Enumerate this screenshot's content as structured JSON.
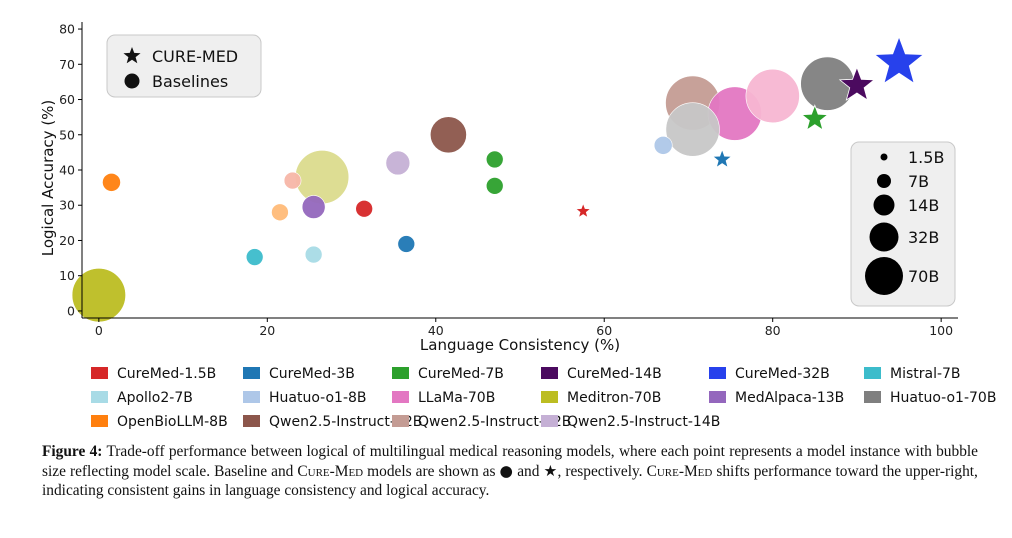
{
  "chart_data": {
    "type": "scatter",
    "xlabel": "Language Consistency (%)",
    "ylabel": "Logical Accuracy (%)",
    "xlim": [
      -2,
      102
    ],
    "ylim": [
      -2,
      82
    ],
    "xticks": [
      0,
      20,
      40,
      60,
      80,
      100
    ],
    "yticks": [
      0,
      10,
      20,
      30,
      40,
      50,
      60,
      70,
      80
    ],
    "grid": false,
    "legend_placement": "bottom",
    "marker_legend": [
      {
        "label": "CURE-MED",
        "marker": "star"
      },
      {
        "label": "Baselines",
        "marker": "circle"
      }
    ],
    "size_legend": [
      {
        "label": "1.5B",
        "size_b": 1.5
      },
      {
        "label": "7B",
        "size_b": 7
      },
      {
        "label": "14B",
        "size_b": 14
      },
      {
        "label": "32B",
        "size_b": 32
      },
      {
        "label": "70B",
        "size_b": 70
      }
    ],
    "series": [
      {
        "name": "CureMed-1.5B",
        "color": "#d62728",
        "marker": "circle",
        "size_b": 7,
        "points": [
          [
            31.5,
            29
          ]
        ]
      },
      {
        "name": "CureMed-1.5B",
        "color": "#d62728",
        "marker": "star",
        "size_b": 1.5,
        "points": [
          [
            57.5,
            28.3
          ]
        ]
      },
      {
        "name": "CureMed-3B",
        "color": "#1f77b4",
        "marker": "circle",
        "size_b": 7,
        "points": [
          [
            36.5,
            19
          ]
        ]
      },
      {
        "name": "CureMed-3B",
        "color": "#1f77b4",
        "marker": "star",
        "size_b": 3,
        "points": [
          [
            74,
            43
          ]
        ]
      },
      {
        "name": "CureMed-7B",
        "color": "#2ca02c",
        "marker": "circle",
        "size_b": 7,
        "points": [
          [
            47,
            35.5
          ],
          [
            47,
            43
          ]
        ]
      },
      {
        "name": "CureMed-7B",
        "color": "#2ca02c",
        "marker": "star",
        "size_b": 7,
        "points": [
          [
            85,
            54.5
          ]
        ]
      },
      {
        "name": "CureMed-14B",
        "color": "#4b0a5f",
        "marker": "star",
        "size_b": 14,
        "points": [
          [
            90,
            64
          ]
        ]
      },
      {
        "name": "CureMed-32B",
        "color": "#2741ec",
        "marker": "star",
        "size_b": 32,
        "points": [
          [
            95,
            70.5
          ]
        ]
      },
      {
        "name": "Mistral-7B",
        "color": "#3cbccb",
        "marker": "circle",
        "size_b": 7,
        "points": [
          [
            18.5,
            15.3
          ]
        ]
      },
      {
        "name": "Apollo2-7B",
        "color": "#a8dbe6",
        "marker": "circle",
        "size_b": 7,
        "points": [
          [
            25.5,
            16
          ]
        ]
      },
      {
        "name": "Huatuo-o1-8B",
        "color": "#aec7e8",
        "marker": "circle",
        "size_b": 8,
        "points": [
          [
            67,
            47
          ]
        ]
      },
      {
        "name": "LLaMa-70B",
        "color": "#e377c2",
        "marker": "circle",
        "size_b": 70,
        "points": [
          [
            75.5,
            56
          ]
        ]
      },
      {
        "name": "Meditron-70B",
        "color": "#bcbd22",
        "marker": "circle",
        "size_b": 70,
        "points": [
          [
            0,
            4.5
          ]
        ]
      },
      {
        "name": "MedAlpaca-13B",
        "color": "#9467bd",
        "marker": "circle",
        "size_b": 13,
        "points": [
          [
            25.5,
            29.5
          ]
        ]
      },
      {
        "name": "Huatuo-o1-70B",
        "color": "#7f7f7f",
        "marker": "circle",
        "size_b": 70,
        "points": [
          [
            86.5,
            64.5
          ]
        ]
      },
      {
        "name": "OpenBioLLM-8B",
        "color": "#ff7f0e",
        "marker": "circle",
        "size_b": 8,
        "points": [
          [
            1.5,
            36.5
          ]
        ]
      },
      {
        "name": "Qwen2.5-Instruct-32B",
        "color": "#8c564b",
        "marker": "circle",
        "size_b": 32,
        "points": [
          [
            41.5,
            50
          ]
        ]
      },
      {
        "name": "Qwen2.5-Instruct-72B",
        "color": "#c49c94",
        "marker": "circle",
        "size_b": 72,
        "points": [
          [
            70.5,
            59
          ]
        ]
      },
      {
        "name": "Qwen2.5-Instruct-14B",
        "color": "#c5b0d5",
        "marker": "circle",
        "size_b": 14,
        "points": [
          [
            35.5,
            42
          ]
        ]
      },
      {
        "name": "",
        "color": "#f7b6a8",
        "marker": "circle",
        "size_b": 7,
        "points": [
          [
            23,
            37
          ]
        ]
      },
      {
        "name": "",
        "color": "#ffbb78",
        "marker": "circle",
        "size_b": 7,
        "points": [
          [
            21.5,
            28
          ]
        ]
      },
      {
        "name": "",
        "color": "#dbdb8d",
        "marker": "circle",
        "size_b": 70,
        "points": [
          [
            26.5,
            38
          ]
        ]
      },
      {
        "name": "",
        "color": "#f7b6d2",
        "marker": "circle",
        "size_b": 70,
        "points": [
          [
            80,
            61
          ]
        ]
      },
      {
        "name": "",
        "color": "#c7c7c7",
        "marker": "circle",
        "size_b": 70,
        "points": [
          [
            70.5,
            51.5
          ]
        ]
      }
    ],
    "legend_entries": [
      {
        "label": "CureMed-1.5B",
        "color": "#d62728"
      },
      {
        "label": "CureMed-3B",
        "color": "#1f77b4"
      },
      {
        "label": "CureMed-7B",
        "color": "#2ca02c"
      },
      {
        "label": "CureMed-14B",
        "color": "#4b0a5f"
      },
      {
        "label": "CureMed-32B",
        "color": "#2741ec"
      },
      {
        "label": "Mistral-7B",
        "color": "#3cbccb"
      },
      {
        "label": "Apollo2-7B",
        "color": "#a8dbe6"
      },
      {
        "label": "Huatuo-o1-8B",
        "color": "#aec7e8"
      },
      {
        "label": "LLaMa-70B",
        "color": "#e377c2"
      },
      {
        "label": "Meditron-70B",
        "color": "#bcbd22"
      },
      {
        "label": "MedAlpaca-13B",
        "color": "#9467bd"
      },
      {
        "label": "Huatuo-o1-70B",
        "color": "#7f7f7f"
      },
      {
        "label": "OpenBioLLM-8B",
        "color": "#ff7f0e"
      },
      {
        "label": "Qwen2.5-Instruct-32B",
        "color": "#8c564b"
      },
      {
        "label": "Qwen2.5-Instruct-72B",
        "color": "#c49c94"
      },
      {
        "label": "Qwen2.5-Instruct-14B",
        "color": "#c5b0d5"
      }
    ]
  },
  "caption": {
    "label": "Figure 4:",
    "text_1": "Trade-off performance between logical of multilingual medical reasoning models, where each point represents a model instance with bubble size reflecting model scale. Baseline and",
    "cure_med_1": "Cure-Med",
    "text_2": "models are shown as",
    "circle_glyph": "●",
    "text_3": "and",
    "star_glyph": "★",
    "text_4": ", respectively.",
    "cure_med_2": "Cure-Med",
    "text_5": "shifts performance toward the upper-right, indicating consistent gains in language consistency and logical accuracy."
  }
}
